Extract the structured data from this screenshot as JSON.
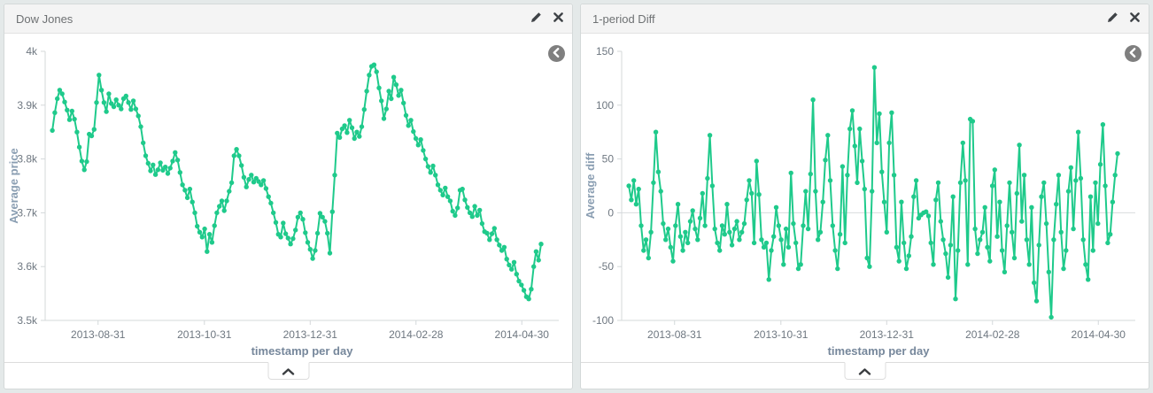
{
  "page": {
    "background": "#e4e9e9",
    "accent_green": "#1fca8b"
  },
  "panels": [
    {
      "title": "Dow Jones",
      "edit_icon": "pencil-icon",
      "close_icon": "close-icon",
      "back_icon": "back-arrow-circle-icon",
      "collapse_icon": "chevron-up-icon"
    },
    {
      "title": "1-period Diff",
      "edit_icon": "pencil-icon",
      "close_icon": "close-icon",
      "back_icon": "back-arrow-circle-icon",
      "collapse_icon": "chevron-up-icon"
    }
  ],
  "chart_data": [
    {
      "type": "line",
      "title": "Dow Jones",
      "xlabel": "timestamp per day",
      "ylabel": "Average price",
      "ylim": [
        3500,
        4000
      ],
      "grid": false,
      "zero_line": false,
      "legend": "none",
      "series_color": "#1fca8b",
      "marker": "circle",
      "x_range": [
        0.014,
        0.9655
      ],
      "yticks": [
        {
          "v": 4000,
          "label": "4k"
        },
        {
          "v": 3900,
          "label": "3.9k"
        },
        {
          "v": 3800,
          "label": "3.8k"
        },
        {
          "v": 3700,
          "label": "3.7k"
        },
        {
          "v": 3600,
          "label": "3.6k"
        },
        {
          "v": 3500,
          "label": "3.5k"
        }
      ],
      "xticks": [
        {
          "f": 0.103,
          "label": "2013-08-31"
        },
        {
          "f": 0.31,
          "label": "2013-10-31"
        },
        {
          "f": 0.516,
          "label": "2013-12-31"
        },
        {
          "f": 0.722,
          "label": "2014-02-28"
        },
        {
          "f": 0.928,
          "label": "2014-04-30"
        }
      ],
      "values": [
        3853,
        3886,
        3912,
        3928,
        3921,
        3906,
        3891,
        3873,
        3889,
        3874,
        3850,
        3822,
        3796,
        3780,
        3795,
        3846,
        3843,
        3855,
        3905,
        3956,
        3928,
        3905,
        3888,
        3921,
        3903,
        3897,
        3910,
        3900,
        3893,
        3912,
        3917,
        3905,
        3892,
        3908,
        3893,
        3880,
        3860,
        3830,
        3806,
        3792,
        3778,
        3789,
        3771,
        3780,
        3793,
        3779,
        3785,
        3773,
        3783,
        3796,
        3812,
        3798,
        3775,
        3752,
        3742,
        3728,
        3744,
        3720,
        3700,
        3675,
        3664,
        3655,
        3670,
        3628,
        3660,
        3645,
        3676,
        3700,
        3712,
        3722,
        3704,
        3722,
        3740,
        3756,
        3806,
        3818,
        3806,
        3788,
        3766,
        3748,
        3762,
        3770,
        3757,
        3764,
        3758,
        3752,
        3760,
        3745,
        3730,
        3718,
        3700,
        3682,
        3660,
        3655,
        3681,
        3661,
        3653,
        3642,
        3652,
        3668,
        3692,
        3700,
        3688,
        3663,
        3645,
        3632,
        3615,
        3630,
        3662,
        3699,
        3692,
        3684,
        3662,
        3625,
        3702,
        3770,
        3848,
        3840,
        3856,
        3862,
        3849,
        3872,
        3858,
        3838,
        3850,
        3842,
        3860,
        3892,
        3926,
        3956,
        3972,
        3975,
        3962,
        3932,
        3908,
        3875,
        3893,
        3926,
        3912,
        3952,
        3938,
        3918,
        3928,
        3904,
        3881,
        3862,
        3872,
        3851,
        3838,
        3826,
        3836,
        3816,
        3800,
        3786,
        3775,
        3787,
        3770,
        3752,
        3742,
        3733,
        3746,
        3730,
        3722,
        3703,
        3695,
        3709,
        3742,
        3744,
        3724,
        3710,
        3700,
        3693,
        3712,
        3695,
        3705,
        3680,
        3665,
        3662,
        3650,
        3661,
        3671,
        3650,
        3640,
        3630,
        3636,
        3614,
        3603,
        3595,
        3608,
        3586,
        3573,
        3566,
        3556,
        3544,
        3540,
        3558,
        3600,
        3628,
        3612,
        3642
      ]
    },
    {
      "type": "line",
      "title": "1-period Diff",
      "xlabel": "timestamp per day",
      "ylabel": "Average diff",
      "ylim": [
        -100,
        150
      ],
      "grid": false,
      "zero_line": true,
      "legend": "none",
      "series_color": "#1fca8b",
      "marker": "circle",
      "x_range": [
        0.014,
        0.9655
      ],
      "yticks": [
        {
          "v": 150,
          "label": "150"
        },
        {
          "v": 100,
          "label": "100"
        },
        {
          "v": 50,
          "label": "50"
        },
        {
          "v": 0,
          "label": "0"
        },
        {
          "v": -50,
          "label": "-50"
        },
        {
          "v": -100,
          "label": "-100"
        }
      ],
      "xticks": [
        {
          "f": 0.103,
          "label": "2013-08-31"
        },
        {
          "f": 0.31,
          "label": "2013-10-31"
        },
        {
          "f": 0.516,
          "label": "2013-12-31"
        },
        {
          "f": 0.722,
          "label": "2014-02-28"
        },
        {
          "f": 0.928,
          "label": "2014-04-30"
        }
      ],
      "values": [
        25,
        12,
        30,
        8,
        22,
        -12,
        -35,
        -25,
        -42,
        -18,
        28,
        75,
        38,
        20,
        -10,
        -25,
        -15,
        -32,
        -45,
        -12,
        8,
        -22,
        -35,
        -18,
        -28,
        -8,
        2,
        -15,
        -25,
        -5,
        18,
        -12,
        32,
        72,
        25,
        -15,
        -28,
        -35,
        -12,
        -20,
        8,
        -18,
        -30,
        -15,
        -8,
        -25,
        -18,
        -10,
        12,
        30,
        18,
        -28,
        48,
        17,
        -25,
        -32,
        -28,
        -62,
        -35,
        -22,
        5,
        -12,
        -25,
        -48,
        -15,
        -32,
        37,
        -10,
        -28,
        -52,
        -48,
        -12,
        20,
        -15,
        36,
        105,
        20,
        -25,
        -18,
        10,
        49,
        72,
        30,
        -12,
        -35,
        -52,
        -20,
        43,
        -28,
        35,
        78,
        95,
        62,
        28,
        78,
        48,
        22,
        -42,
        -50,
        20,
        135,
        65,
        92,
        38,
        10,
        -18,
        65,
        93,
        35,
        -32,
        -45,
        10,
        -28,
        -52,
        -40,
        -22,
        15,
        30,
        -5,
        -2,
        0,
        1,
        -3,
        -28,
        -48,
        12,
        28,
        -8,
        -25,
        -38,
        -60,
        -30,
        15,
        -80,
        -35,
        28,
        65,
        30,
        -48,
        87,
        85,
        -15,
        -38,
        -25,
        -18,
        5,
        -32,
        -45,
        25,
        40,
        -22,
        10,
        -35,
        -55,
        -12,
        28,
        -18,
        -42,
        18,
        63,
        -8,
        35,
        -25,
        -48,
        5,
        -65,
        -82,
        -30,
        15,
        28,
        -10,
        -55,
        -97,
        -25,
        8,
        35,
        -18,
        -52,
        -35,
        20,
        42,
        -15,
        30,
        75,
        32,
        -25,
        -48,
        -62,
        15,
        -35,
        28,
        -10,
        45,
        82,
        25,
        -28,
        -20,
        10,
        35,
        55
      ]
    }
  ]
}
